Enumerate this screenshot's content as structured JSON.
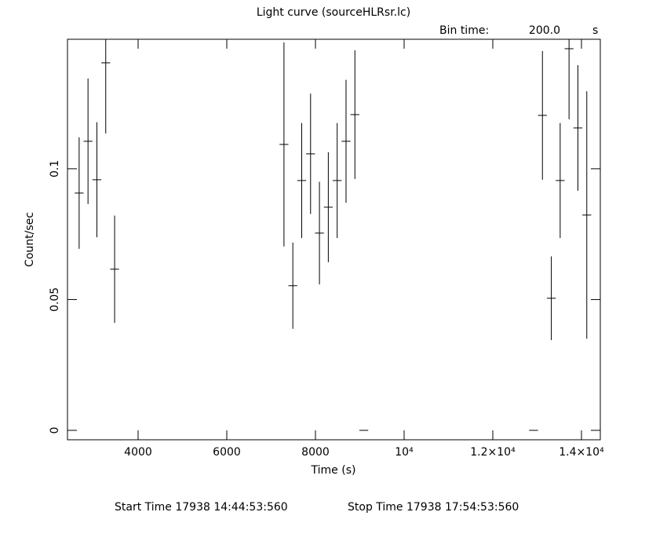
{
  "chart_data": {
    "type": "errorbar",
    "title": "Light curve (sourceHLRsr.lc)",
    "bin_time_label": "Bin time:",
    "bin_time": "200.0",
    "bin_time_unit": "s",
    "xlabel": "Time (s)",
    "ylabel": "Count/sec",
    "start_time": "Start Time 17938 14:44:53:560",
    "stop_time": "Stop Time 17938 17:54:53:560",
    "xlim": [
      2407,
      14425
    ],
    "ylim": [
      -0.0036,
      0.1495
    ],
    "xticks": [
      4000,
      6000,
      8000,
      {
        "value": 10000,
        "label": "10⁴"
      },
      {
        "value": 12000,
        "label": "1.2×10⁴"
      },
      {
        "value": 14000,
        "label": "1.4×10⁴"
      }
    ],
    "yticks": [
      0,
      0.05,
      0.1
    ],
    "color": "#000000",
    "x": [
      2670,
      2870,
      3070,
      3270,
      3470,
      7290,
      7490,
      7690,
      7890,
      8090,
      8290,
      8490,
      8690,
      8890,
      9090,
      12920,
      13120,
      13320,
      13520,
      13720,
      13920,
      14120
    ],
    "values": [
      0.0907,
      0.1105,
      0.0958,
      0.1405,
      0.0616,
      0.1093,
      0.0553,
      0.0955,
      0.1057,
      0.0754,
      0.0853,
      0.0955,
      0.1105,
      0.1207,
      0,
      0,
      0.1204,
      0.0505,
      0.0955,
      0.1459,
      0.1156,
      0.0823
    ],
    "xerr": [
      100,
      100,
      100,
      100,
      100,
      100,
      100,
      100,
      100,
      100,
      100,
      100,
      100,
      100,
      100,
      100,
      100,
      100,
      100,
      100,
      100,
      100
    ],
    "yerr": [
      0.0213,
      0.024,
      0.022,
      0.027,
      0.0205,
      0.039,
      0.0165,
      0.022,
      0.023,
      0.0196,
      0.021,
      0.022,
      0.0235,
      0.0246,
      0,
      0,
      0.0246,
      0.016,
      0.022,
      0.027,
      0.024,
      0.0473
    ]
  }
}
